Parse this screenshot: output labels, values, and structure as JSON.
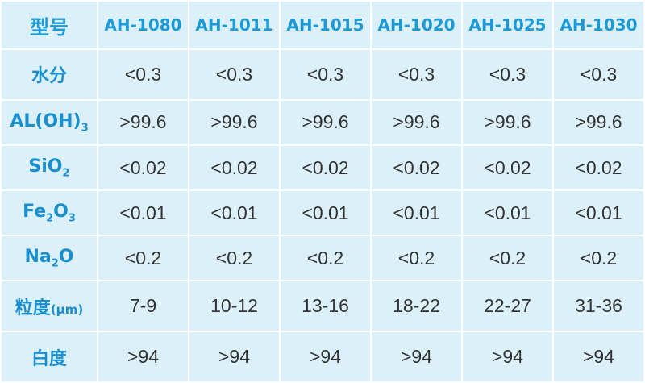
{
  "table": {
    "header": [
      "型号",
      "AH-1080",
      "AH-1011",
      "AH-1015",
      "AH-1020",
      "AH-1025",
      "AH-1030"
    ],
    "rows": [
      {
        "label": [
          {
            "text": "水分"
          }
        ],
        "values": [
          "<0.3",
          "<0.3",
          "<0.3",
          "<0.3",
          "<0.3",
          "<0.3"
        ]
      },
      {
        "label": [
          {
            "text": "AL(OH)"
          },
          {
            "sub": "3"
          }
        ],
        "values": [
          ">99.6",
          ">99.6",
          ">99.6",
          ">99.6",
          ">99.6",
          ">99.6"
        ]
      },
      {
        "label": [
          {
            "text": "SiO"
          },
          {
            "sub": "2"
          }
        ],
        "values": [
          "<0.02",
          "<0.02",
          "<0.02",
          "<0.02",
          "<0.02",
          "<0.02"
        ]
      },
      {
        "label": [
          {
            "text": "Fe"
          },
          {
            "sub": "2"
          },
          {
            "text": "O"
          },
          {
            "sub": "3"
          }
        ],
        "values": [
          "<0.01",
          "<0.01",
          "<0.01",
          "<0.01",
          "<0.01",
          "<0.01"
        ]
      },
      {
        "label": [
          {
            "text": "Na"
          },
          {
            "sub": "2"
          },
          {
            "text": "O"
          }
        ],
        "values": [
          "<0.2",
          "<0.2",
          "<0.2",
          "<0.2",
          "<0.2",
          "<0.2"
        ]
      },
      {
        "label": [
          {
            "text": "粒度"
          },
          {
            "small": "(μm)"
          }
        ],
        "values": [
          "7-9",
          "10-12",
          "13-16",
          "18-22",
          "22-27",
          "31-36"
        ]
      },
      {
        "label": [
          {
            "text": "白度"
          }
        ],
        "values": [
          ">94",
          ">94",
          ">94",
          ">94",
          ">94",
          ">94"
        ]
      }
    ]
  }
}
